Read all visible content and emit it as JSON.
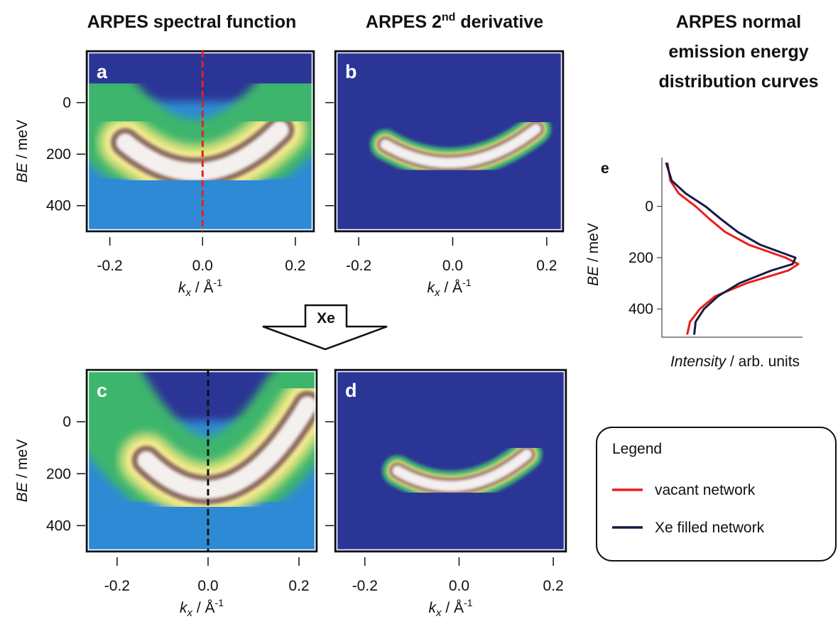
{
  "chart_data": [
    {
      "type": "heatmap",
      "title": "ARPES spectral function",
      "label": "a",
      "xlabel": [
        "k",
        "x",
        " / Å",
        "-1"
      ],
      "ylabel": [
        "BE",
        " / meV"
      ],
      "xlim": [
        -0.25,
        0.24
      ],
      "ylim": [
        -200,
        500
      ],
      "y_reversed": true,
      "xticks": [
        -0.2,
        {
          "value": 0,
          "label": "0.0"
        },
        0.2
      ],
      "yticks": [
        0,
        200,
        400
      ],
      "cut": {
        "x": 0,
        "color": "#e8201c"
      }
    },
    {
      "type": "heatmap",
      "title": [
        "ARPES 2",
        "nd",
        " derivative"
      ],
      "label": "b",
      "xlabel": [
        "k",
        "x",
        " / Å",
        "-1"
      ],
      "xlim": [
        -0.25,
        0.235
      ],
      "ylim": [
        -200,
        500
      ],
      "y_reversed": true,
      "xticks": [
        -0.2,
        {
          "value": 0,
          "label": "0.0"
        },
        0.2
      ],
      "yticks": [
        0,
        200,
        400
      ]
    },
    {
      "type": "heatmap",
      "label": "c",
      "xlabel": [
        "k",
        "x",
        " / Å",
        "-1"
      ],
      "ylabel": [
        "BE",
        " / meV"
      ],
      "xlim": [
        -0.267,
        0.239
      ],
      "ylim": [
        -200,
        500
      ],
      "y_reversed": true,
      "xticks": [
        -0.2,
        {
          "value": 0,
          "label": "0.0"
        },
        0.2
      ],
      "yticks": [
        0,
        200,
        400
      ],
      "cut": {
        "x": 0,
        "color": "#111111"
      }
    },
    {
      "type": "heatmap",
      "label": "d",
      "xlabel": [
        "k",
        "x",
        " / Å",
        "-1"
      ],
      "xlim": [
        -0.263,
        0.227
      ],
      "ylim": [
        -200,
        500
      ],
      "y_reversed": true,
      "xticks": [
        -0.2,
        {
          "value": 0,
          "label": "0.0"
        },
        0.2
      ],
      "yticks": [
        0,
        200,
        400
      ]
    },
    {
      "type": "line",
      "title": [
        "ARPES normal",
        "emission energy",
        "distribution curves"
      ],
      "label": "e",
      "xlabel": [
        "Intensity",
        " / arb. units"
      ],
      "ylabel": [
        "BE",
        " / meV"
      ],
      "xlim": [
        0,
        1
      ],
      "ylim": [
        -190,
        510
      ],
      "y_reversed": true,
      "yticks": [
        0,
        200,
        400
      ],
      "y": [
        -170,
        -100,
        -50,
        0,
        50,
        100,
        150,
        200,
        225,
        250,
        300,
        350,
        400,
        450,
        500
      ],
      "series": [
        {
          "name": "vacant network",
          "color": "#ee1c1c",
          "values": [
            0.04,
            0.06,
            0.12,
            0.24,
            0.34,
            0.45,
            0.62,
            0.88,
            0.97,
            0.9,
            0.6,
            0.38,
            0.27,
            0.2,
            0.18
          ]
        },
        {
          "name": "Xe filled network",
          "color": "#141c44",
          "values": [
            0.03,
            0.07,
            0.17,
            0.31,
            0.42,
            0.54,
            0.7,
            0.95,
            0.93,
            0.78,
            0.55,
            0.4,
            0.3,
            0.24,
            0.23
          ]
        }
      ],
      "legend_title": "Legend"
    }
  ],
  "arrow_label": "Xe"
}
